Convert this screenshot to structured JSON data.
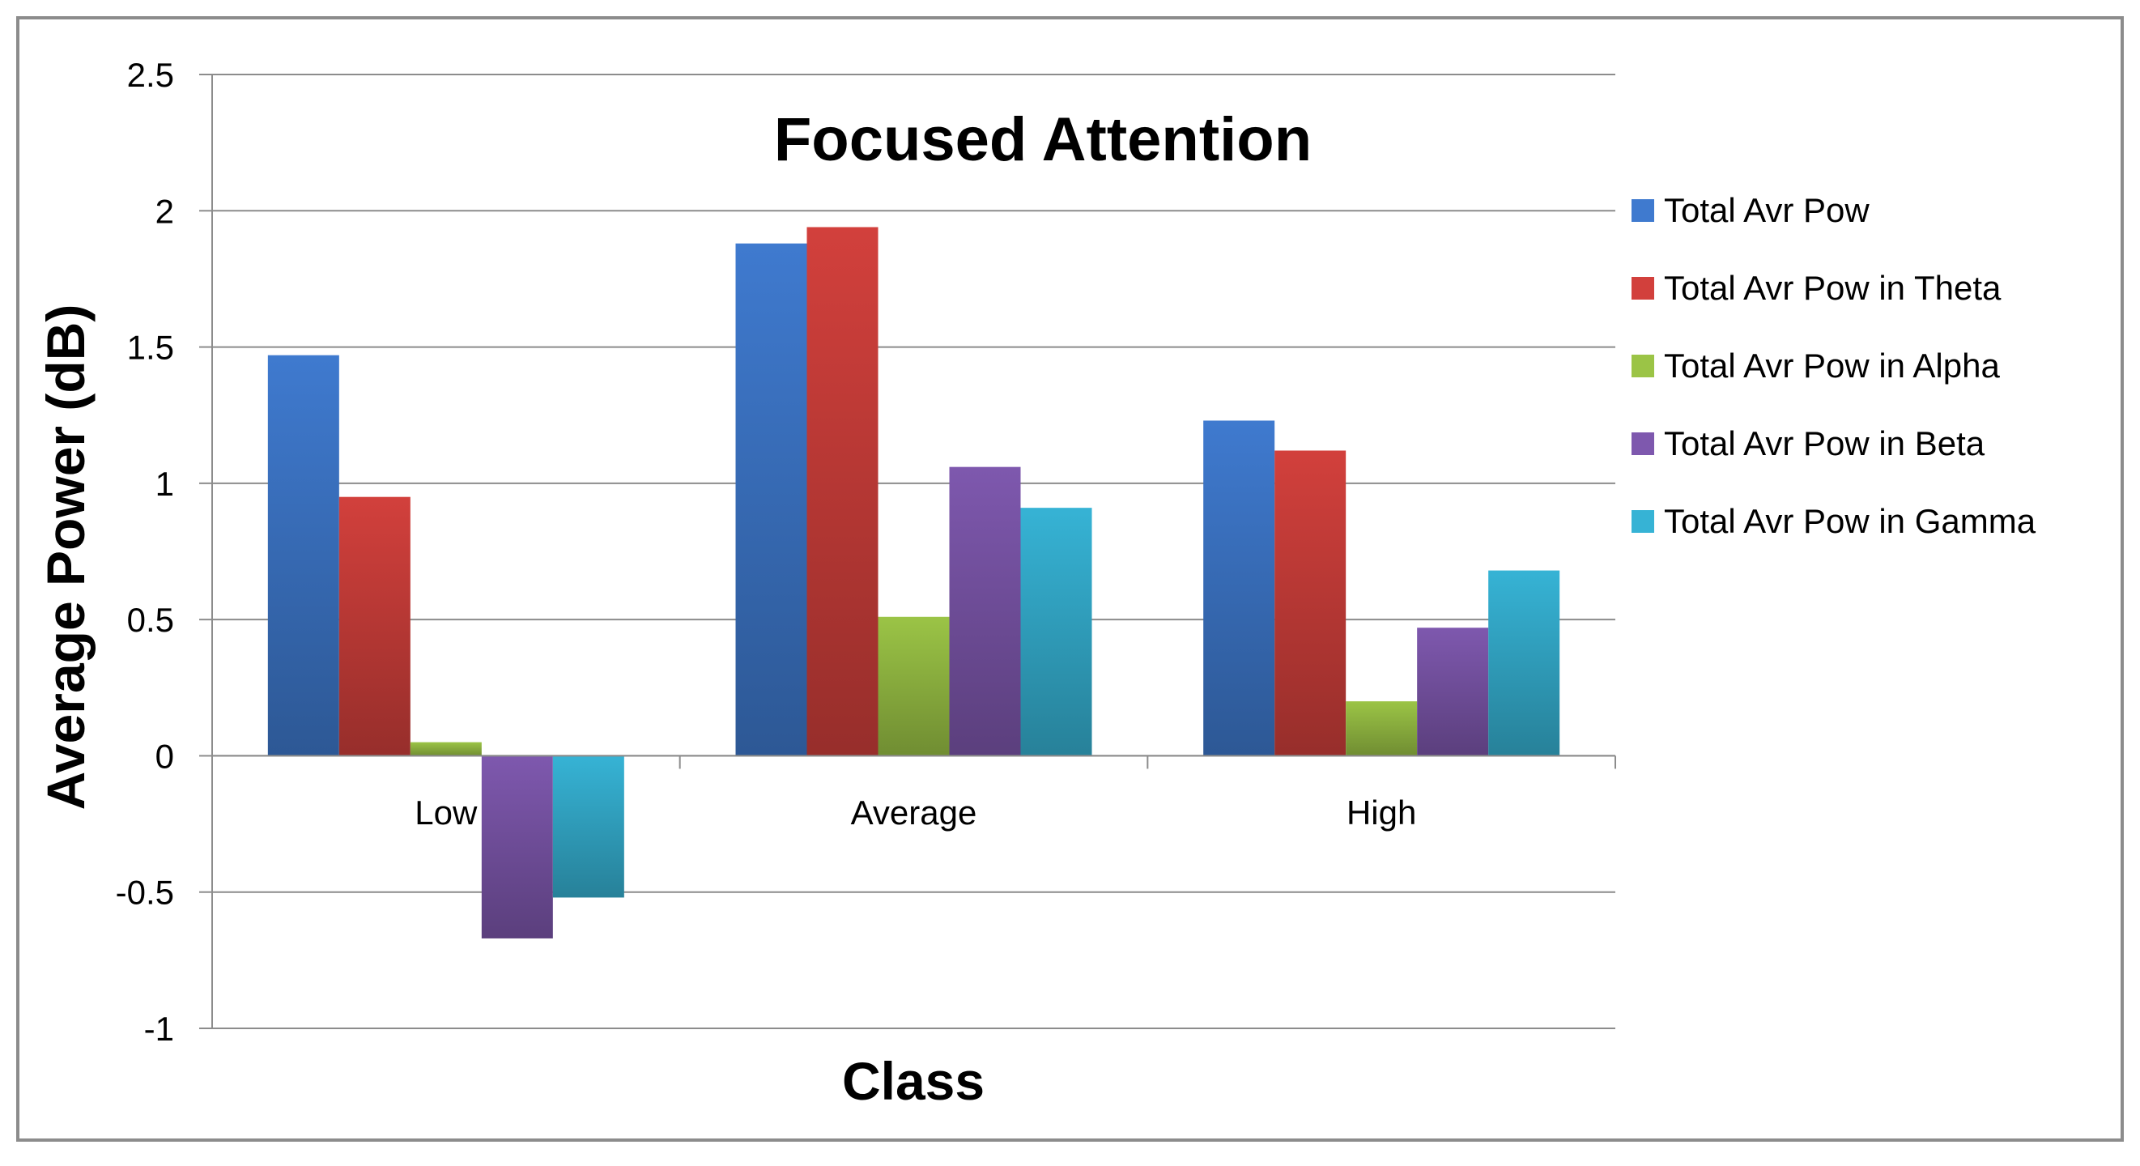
{
  "chart_data": {
    "type": "bar",
    "title": "Focused Attention",
    "xlabel": "Class",
    "ylabel": "Average Power (dB)",
    "categories": [
      "Low",
      "Average",
      "High"
    ],
    "ylim": [
      -1,
      2.5
    ],
    "yticks": [
      -1,
      -0.5,
      0,
      0.5,
      1,
      1.5,
      2,
      2.5
    ],
    "ytick_labels": [
      "-1",
      "-0.5",
      "0",
      "0.5",
      "1",
      "1.5",
      "2",
      "2.5"
    ],
    "grid": true,
    "legend_position": "right",
    "series": [
      {
        "name": "Total Avr Pow",
        "color": "#3F7ACF",
        "values": [
          1.47,
          1.88,
          1.23
        ]
      },
      {
        "name": "Total Avr Pow in Theta",
        "color": "#D2403C",
        "values": [
          0.95,
          1.94,
          1.12
        ]
      },
      {
        "name": "Total Avr Pow in Alpha",
        "color": "#9BC446",
        "values": [
          0.05,
          0.51,
          0.2
        ]
      },
      {
        "name": "Total Avr Pow in Beta",
        "color": "#7E58AE",
        "values": [
          -0.67,
          1.06,
          0.47
        ]
      },
      {
        "name": "Total Avr Pow in Gamma",
        "color": "#36B3D5",
        "values": [
          -0.52,
          0.91,
          0.68
        ]
      }
    ]
  }
}
